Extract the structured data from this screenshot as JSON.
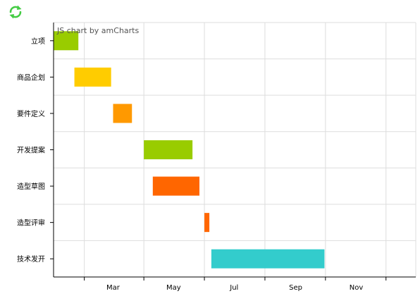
{
  "toolbar": {
    "refresh_icon": "refresh-icon",
    "refresh_color": "#44cc44"
  },
  "chart_data": {
    "type": "gantt",
    "credit": "JS chart by amCharts",
    "categories": [
      "立项",
      "商品企划",
      "要件定义",
      "开发提案",
      "造型草图",
      "造型评审",
      "技术发开"
    ],
    "tasks": [
      {
        "category": "立项",
        "start": "2016-01-01",
        "end": "2016-01-26",
        "color": "#99cc00"
      },
      {
        "category": "商品企划",
        "start": "2016-01-22",
        "end": "2016-02-28",
        "color": "#ffcc00"
      },
      {
        "category": "要件定义",
        "start": "2016-03-01",
        "end": "2016-03-20",
        "color": "#ff9900"
      },
      {
        "category": "开发提案",
        "start": "2016-04-01",
        "end": "2016-05-20",
        "color": "#99cc00"
      },
      {
        "category": "造型草图",
        "start": "2016-04-10",
        "end": "2016-05-27",
        "color": "#ff6600"
      },
      {
        "category": "造型评审",
        "start": "2016-06-01",
        "end": "2016-06-06",
        "color": "#ff6600"
      },
      {
        "category": "技术发开",
        "start": "2016-06-08",
        "end": "2016-09-30",
        "color": "#33cccc"
      }
    ],
    "x_axis": {
      "ticks": [
        "Mar",
        "May",
        "Jul",
        "Sep",
        "Nov"
      ],
      "grid": true
    },
    "grid": true
  }
}
